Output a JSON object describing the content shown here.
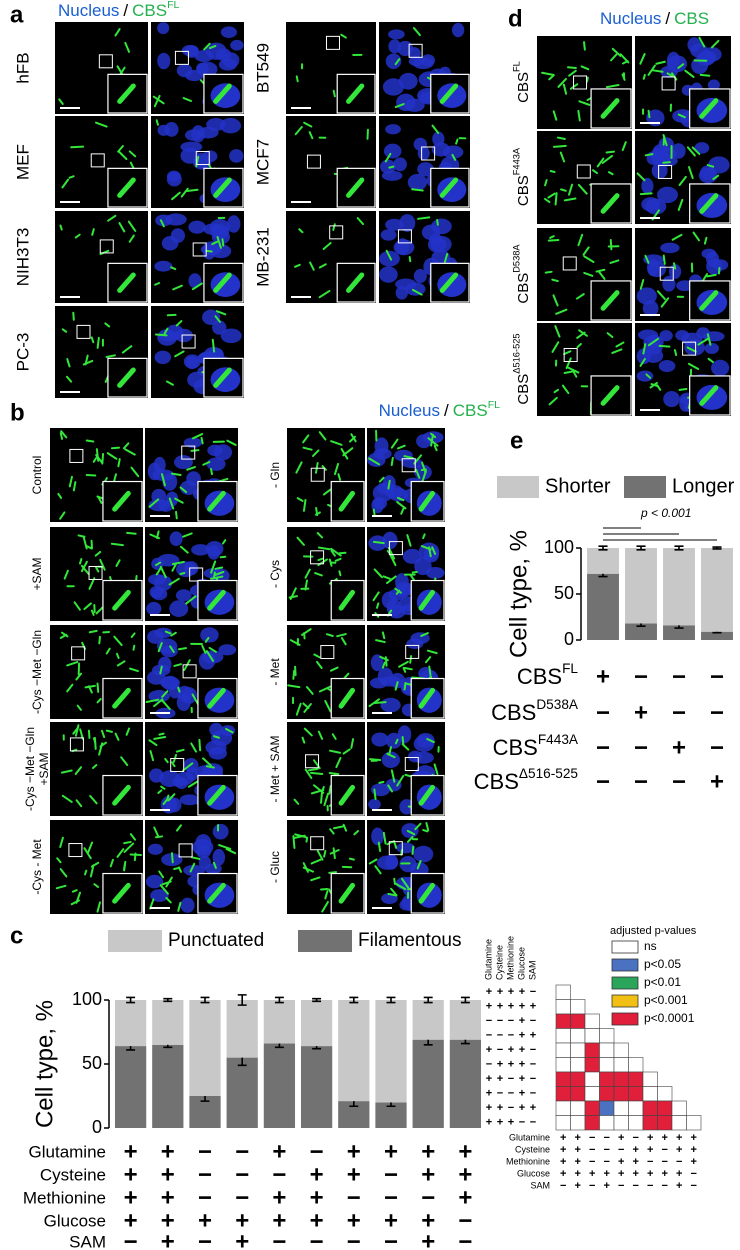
{
  "panel_a": {
    "letter": "a",
    "header": {
      "nucleus": "Nucleus",
      "sep": "/",
      "cbs": "CBS",
      "sup": "FL"
    },
    "rows_left": [
      "hFB",
      "MEF",
      "NIH3T3",
      "PC-3"
    ],
    "rows_right": [
      "BT549",
      "MCF7",
      "MB-231"
    ]
  },
  "panel_b": {
    "letter": "b",
    "header": {
      "nucleus": "Nucleus",
      "sep": "/",
      "cbs": "CBS",
      "sup": "FL"
    },
    "rows_left": [
      [
        "Control"
      ],
      [
        "+SAM"
      ],
      [
        "-Cys −Met −Gln"
      ],
      [
        "-Cys −Met −Gln",
        "+SAM"
      ],
      [
        "-Cys - Met"
      ]
    ],
    "rows_right": [
      [
        "- Gln"
      ],
      [
        "- Cys"
      ],
      [
        "- Met"
      ],
      [
        "- Met + SAM"
      ],
      [
        "- Gluc"
      ]
    ]
  },
  "panel_d": {
    "letter": "d",
    "header": {
      "nucleus": "Nucleus",
      "sep": "/",
      "cbs": "CBS"
    },
    "rows": [
      {
        "base": "CBS",
        "sup": "FL"
      },
      {
        "base": "CBS",
        "sup": "F443A"
      },
      {
        "base": "CBS",
        "sup": "D538A"
      },
      {
        "base": "CBS",
        "sup": "Δ516-525"
      }
    ]
  },
  "chart_data": [
    {
      "type": "bar",
      "label": "c",
      "stacked": true,
      "ylabel": "Cell type, %",
      "ylim": [
        0,
        100
      ],
      "yticks": [
        0,
        50,
        100
      ],
      "series": [
        {
          "name": "Punctuated",
          "color": "#c8c8c8",
          "values": [
            36,
            35,
            75,
            45,
            34,
            36,
            79,
            80,
            31,
            31
          ],
          "errors": [
            2,
            1,
            2,
            4,
            2,
            1,
            2,
            2,
            2,
            2
          ]
        },
        {
          "name": "Filamentous",
          "color": "#727272",
          "values": [
            64,
            65,
            25,
            55,
            66,
            64,
            21,
            20,
            69,
            69
          ],
          "errors": [
            3,
            2,
            4,
            6,
            3,
            2,
            4,
            3,
            4,
            3
          ]
        }
      ],
      "conditions": [
        {
          "name": "Glutamine",
          "signs": [
            "+",
            "+",
            "−",
            "−",
            "+",
            "−",
            "+",
            "+",
            "+",
            "+"
          ]
        },
        {
          "name": "Cysteine",
          "signs": [
            "+",
            "+",
            "−",
            "−",
            "−",
            "+",
            "+",
            "−",
            "+",
            "+"
          ]
        },
        {
          "name": "Methionine",
          "signs": [
            "+",
            "+",
            "−",
            "−",
            "+",
            "+",
            "−",
            "−",
            "−",
            "+"
          ]
        },
        {
          "name": "Glucose",
          "signs": [
            "+",
            "+",
            "+",
            "+",
            "+",
            "+",
            "+",
            "+",
            "+",
            "−"
          ]
        },
        {
          "name": "SAM",
          "signs": [
            "−",
            "+",
            "−",
            "+",
            "−",
            "−",
            "−",
            "−",
            "+",
            "−"
          ]
        }
      ]
    },
    {
      "type": "bar",
      "label": "e",
      "stacked": true,
      "ylabel": "Cell type, %",
      "annotation": "p < 0.001",
      "ylim": [
        0,
        100
      ],
      "yticks": [
        0,
        50,
        100
      ],
      "series": [
        {
          "name": "Shorter",
          "color": "#c8c8c8",
          "values": [
            28,
            82,
            84,
            91
          ],
          "errors": [
            2,
            2,
            2,
            1
          ]
        },
        {
          "name": "Longer",
          "color": "#727272",
          "values": [
            72,
            18,
            16,
            9
          ],
          "errors": [
            3,
            3,
            3,
            1
          ]
        }
      ],
      "conditions": [
        {
          "name": "CBS",
          "sup": "FL",
          "signs": [
            "+",
            "−",
            "−",
            "−"
          ]
        },
        {
          "name": "CBS",
          "sup": "D538A",
          "signs": [
            "−",
            "+",
            "−",
            "−"
          ]
        },
        {
          "name": "CBS",
          "sup": "F443A",
          "signs": [
            "−",
            "−",
            "+",
            "−"
          ]
        },
        {
          "name": "CBS",
          "sup": "Δ516-525",
          "signs": [
            "−",
            "−",
            "−",
            "+"
          ]
        }
      ]
    },
    {
      "type": "heatmap",
      "title": "adjusted p-values",
      "levels": [
        {
          "label": "ns",
          "color": "#ffffff"
        },
        {
          "label": "p<0.05",
          "color": "#4a72c0"
        },
        {
          "label": "p<0.01",
          "color": "#2aa55a"
        },
        {
          "label": "p<0.001",
          "color": "#f2c014"
        },
        {
          "label": "p<0.0001",
          "color": "#e0203a"
        }
      ],
      "matrix": [
        [
          "ns"
        ],
        [
          "p<0.0001",
          "p<0.0001"
        ],
        [
          "ns",
          "ns",
          "ns"
        ],
        [
          "ns",
          "ns",
          "p<0.0001",
          "ns"
        ],
        [
          "ns",
          "ns",
          "p<0.0001",
          "ns",
          "ns"
        ],
        [
          "p<0.0001",
          "p<0.0001",
          "ns",
          "p<0.0001",
          "p<0.0001",
          "p<0.0001"
        ],
        [
          "p<0.0001",
          "p<0.0001",
          "ns",
          "p<0.0001",
          "p<0.0001",
          "p<0.0001",
          "ns"
        ],
        [
          "ns",
          "ns",
          "p<0.0001",
          "p<0.05",
          "ns",
          "ns",
          "p<0.0001",
          "p<0.0001"
        ],
        [
          "ns",
          "ns",
          "p<0.0001",
          "ns",
          "ns",
          "ns",
          "p<0.0001",
          "p<0.0001",
          "ns"
        ]
      ]
    }
  ]
}
